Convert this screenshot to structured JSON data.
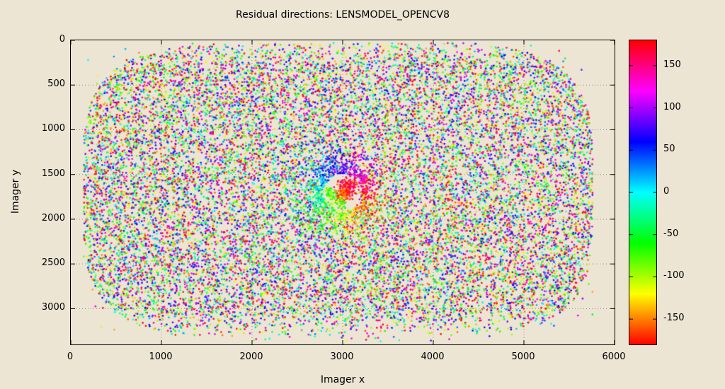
{
  "colors": {
    "background": "#ece5d4",
    "frame": "#000000",
    "grid": "#8f8f8f",
    "text": "#000000"
  },
  "chart_data": {
    "type": "scatter",
    "title": "Residual directions: LENSMODEL_OPENCV8",
    "xlabel": "Imager x",
    "ylabel": "Imager y",
    "xlim": [
      0,
      6000
    ],
    "ylim": [
      0,
      3400
    ],
    "y_axis_reversed": true,
    "xticks": [
      0,
      1000,
      2000,
      3000,
      4000,
      5000,
      6000
    ],
    "yticks": [
      0,
      500,
      1000,
      1500,
      2000,
      2500,
      3000
    ],
    "grid": true,
    "marker": {
      "shape": "circle",
      "radius_px": 1.35,
      "saturation": 100,
      "lightness": 50
    },
    "colorbar": {
      "range": [
        -180,
        180
      ],
      "ticks": [
        150,
        100,
        50,
        0,
        -50,
        -100,
        -150
      ],
      "colormap": "hsv",
      "hue_rule": "hue_deg = value + 180",
      "gradient_hues_bottom_to_top": [
        0,
        30,
        60,
        90,
        120,
        150,
        180,
        210,
        240,
        270,
        300,
        330,
        360
      ]
    },
    "point_cloud": {
      "generated": true,
      "seed": 7,
      "count_main": 19000,
      "bounds": {
        "x": [
          140,
          5760
        ],
        "y": [
          30,
          3370
        ]
      },
      "superellipse": {
        "cx": 2950,
        "cy": 1680,
        "a": 2810,
        "b": 1690,
        "n": 4
      },
      "void": {
        "cx": 3000,
        "cy": 1700,
        "radius": 215
      },
      "ring_points": 650,
      "inner_cluster_points": 310,
      "hue_rule": "angle around void center with noise growing with radius"
    }
  }
}
